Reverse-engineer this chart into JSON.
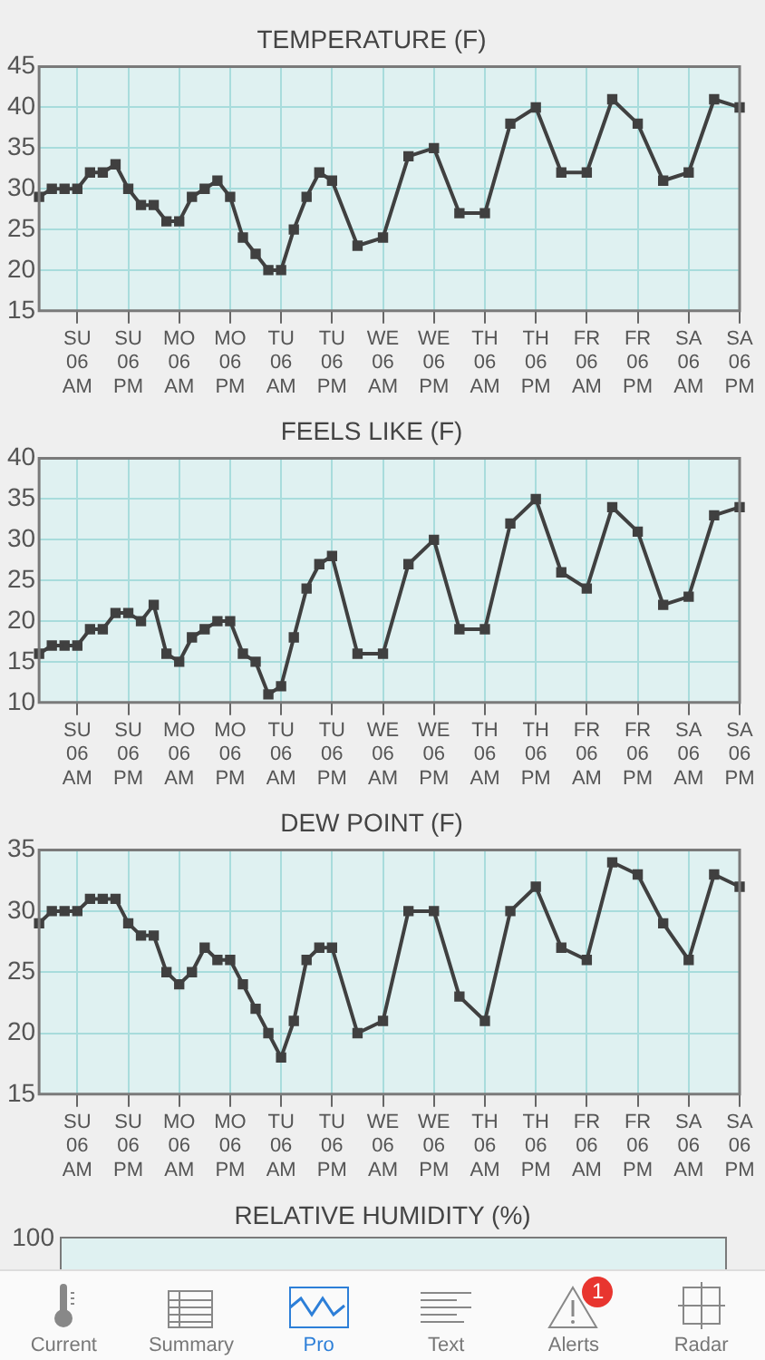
{
  "chart_data": [
    {
      "type": "line",
      "title": "TEMPERATURE (F)",
      "categories": [
        null,
        null,
        null,
        "SU 06 AM",
        null,
        null,
        null,
        "SU 06 PM",
        null,
        null,
        null,
        "MO 06 AM",
        null,
        null,
        null,
        "MO 06 PM",
        null,
        null,
        null,
        "TU 06 AM",
        null,
        null,
        null,
        "TU 06 PM",
        null,
        null,
        null,
        "WE 06 AM",
        null,
        null,
        null,
        "WE 06 PM",
        null,
        null,
        null,
        "TH 06 AM",
        null,
        null,
        null,
        "TH 06 PM",
        null,
        null,
        null,
        "FR 06 AM",
        null,
        null,
        null,
        "FR 06 PM",
        null,
        null,
        null,
        "SA 06 AM",
        null,
        null,
        null,
        "SA 06 PM"
      ],
      "values": [
        29,
        30,
        30,
        30,
        32,
        32,
        33,
        30,
        28,
        28,
        26,
        26,
        29,
        30,
        31,
        29,
        24,
        22,
        20,
        20,
        25,
        29,
        32,
        31,
        null,
        23,
        null,
        24,
        null,
        34,
        null,
        35,
        null,
        27,
        null,
        27,
        null,
        38,
        null,
        40,
        null,
        32,
        null,
        32,
        null,
        41,
        null,
        38,
        null,
        31,
        null,
        32,
        null,
        41,
        null,
        40
      ],
      "color": "#404040",
      "marker": "square",
      "grid": true,
      "ylim": [
        15,
        45
      ],
      "yticks": [
        15,
        20,
        25,
        30,
        35,
        40,
        45
      ]
    },
    {
      "type": "line",
      "title": "FEELS LIKE (F)",
      "categories": [
        null,
        null,
        null,
        "SU 06 AM",
        null,
        null,
        null,
        "SU 06 PM",
        null,
        null,
        null,
        "MO 06 AM",
        null,
        null,
        null,
        "MO 06 PM",
        null,
        null,
        null,
        "TU 06 AM",
        null,
        null,
        null,
        "TU 06 PM",
        null,
        null,
        null,
        "WE 06 AM",
        null,
        null,
        null,
        "WE 06 PM",
        null,
        null,
        null,
        "TH 06 AM",
        null,
        null,
        null,
        "TH 06 PM",
        null,
        null,
        null,
        "FR 06 AM",
        null,
        null,
        null,
        "FR 06 PM",
        null,
        null,
        null,
        "SA 06 AM",
        null,
        null,
        null,
        "SA 06 PM"
      ],
      "values": [
        16,
        17,
        17,
        17,
        19,
        19,
        21,
        21,
        20,
        22,
        16,
        15,
        18,
        19,
        20,
        20,
        16,
        15,
        11,
        12,
        18,
        24,
        27,
        28,
        null,
        16,
        null,
        16,
        null,
        27,
        null,
        30,
        null,
        19,
        null,
        19,
        null,
        32,
        null,
        35,
        null,
        26,
        null,
        24,
        null,
        34,
        null,
        31,
        null,
        22,
        null,
        23,
        null,
        33,
        null,
        34
      ],
      "color": "#404040",
      "marker": "square",
      "grid": true,
      "ylim": [
        10,
        40
      ],
      "yticks": [
        10,
        15,
        20,
        25,
        30,
        35,
        40
      ]
    },
    {
      "type": "line",
      "title": "DEW POINT (F)",
      "categories": [
        null,
        null,
        null,
        "SU 06 AM",
        null,
        null,
        null,
        "SU 06 PM",
        null,
        null,
        null,
        "MO 06 AM",
        null,
        null,
        null,
        "MO 06 PM",
        null,
        null,
        null,
        "TU 06 AM",
        null,
        null,
        null,
        "TU 06 PM",
        null,
        null,
        null,
        "WE 06 AM",
        null,
        null,
        null,
        "WE 06 PM",
        null,
        null,
        null,
        "TH 06 AM",
        null,
        null,
        null,
        "TH 06 PM",
        null,
        null,
        null,
        "FR 06 AM",
        null,
        null,
        null,
        "FR 06 PM",
        null,
        null,
        null,
        "SA 06 AM",
        null,
        null,
        null,
        "SA 06 PM"
      ],
      "values": [
        29,
        30,
        30,
        30,
        31,
        31,
        31,
        29,
        28,
        28,
        25,
        24,
        25,
        27,
        26,
        26,
        24,
        22,
        20,
        18,
        21,
        26,
        27,
        27,
        null,
        20,
        null,
        21,
        null,
        30,
        null,
        30,
        null,
        23,
        null,
        21,
        null,
        30,
        null,
        32,
        null,
        27,
        null,
        26,
        null,
        34,
        null,
        33,
        null,
        29,
        null,
        26,
        null,
        33,
        null,
        32
      ],
      "color": "#404040",
      "marker": "square",
      "grid": true,
      "ylim": [
        15,
        35
      ],
      "yticks": [
        15,
        20,
        25,
        30,
        35
      ]
    },
    {
      "type": "other",
      "title": "RELATIVE HUMIDITY (%)",
      "annotations": [
        "100"
      ]
    },
    {
      "type": "other",
      "annotations": [
        "Current",
        "Summary",
        "Pro",
        "Text",
        "Alerts",
        "Radar",
        "1"
      ]
    }
  ]
}
